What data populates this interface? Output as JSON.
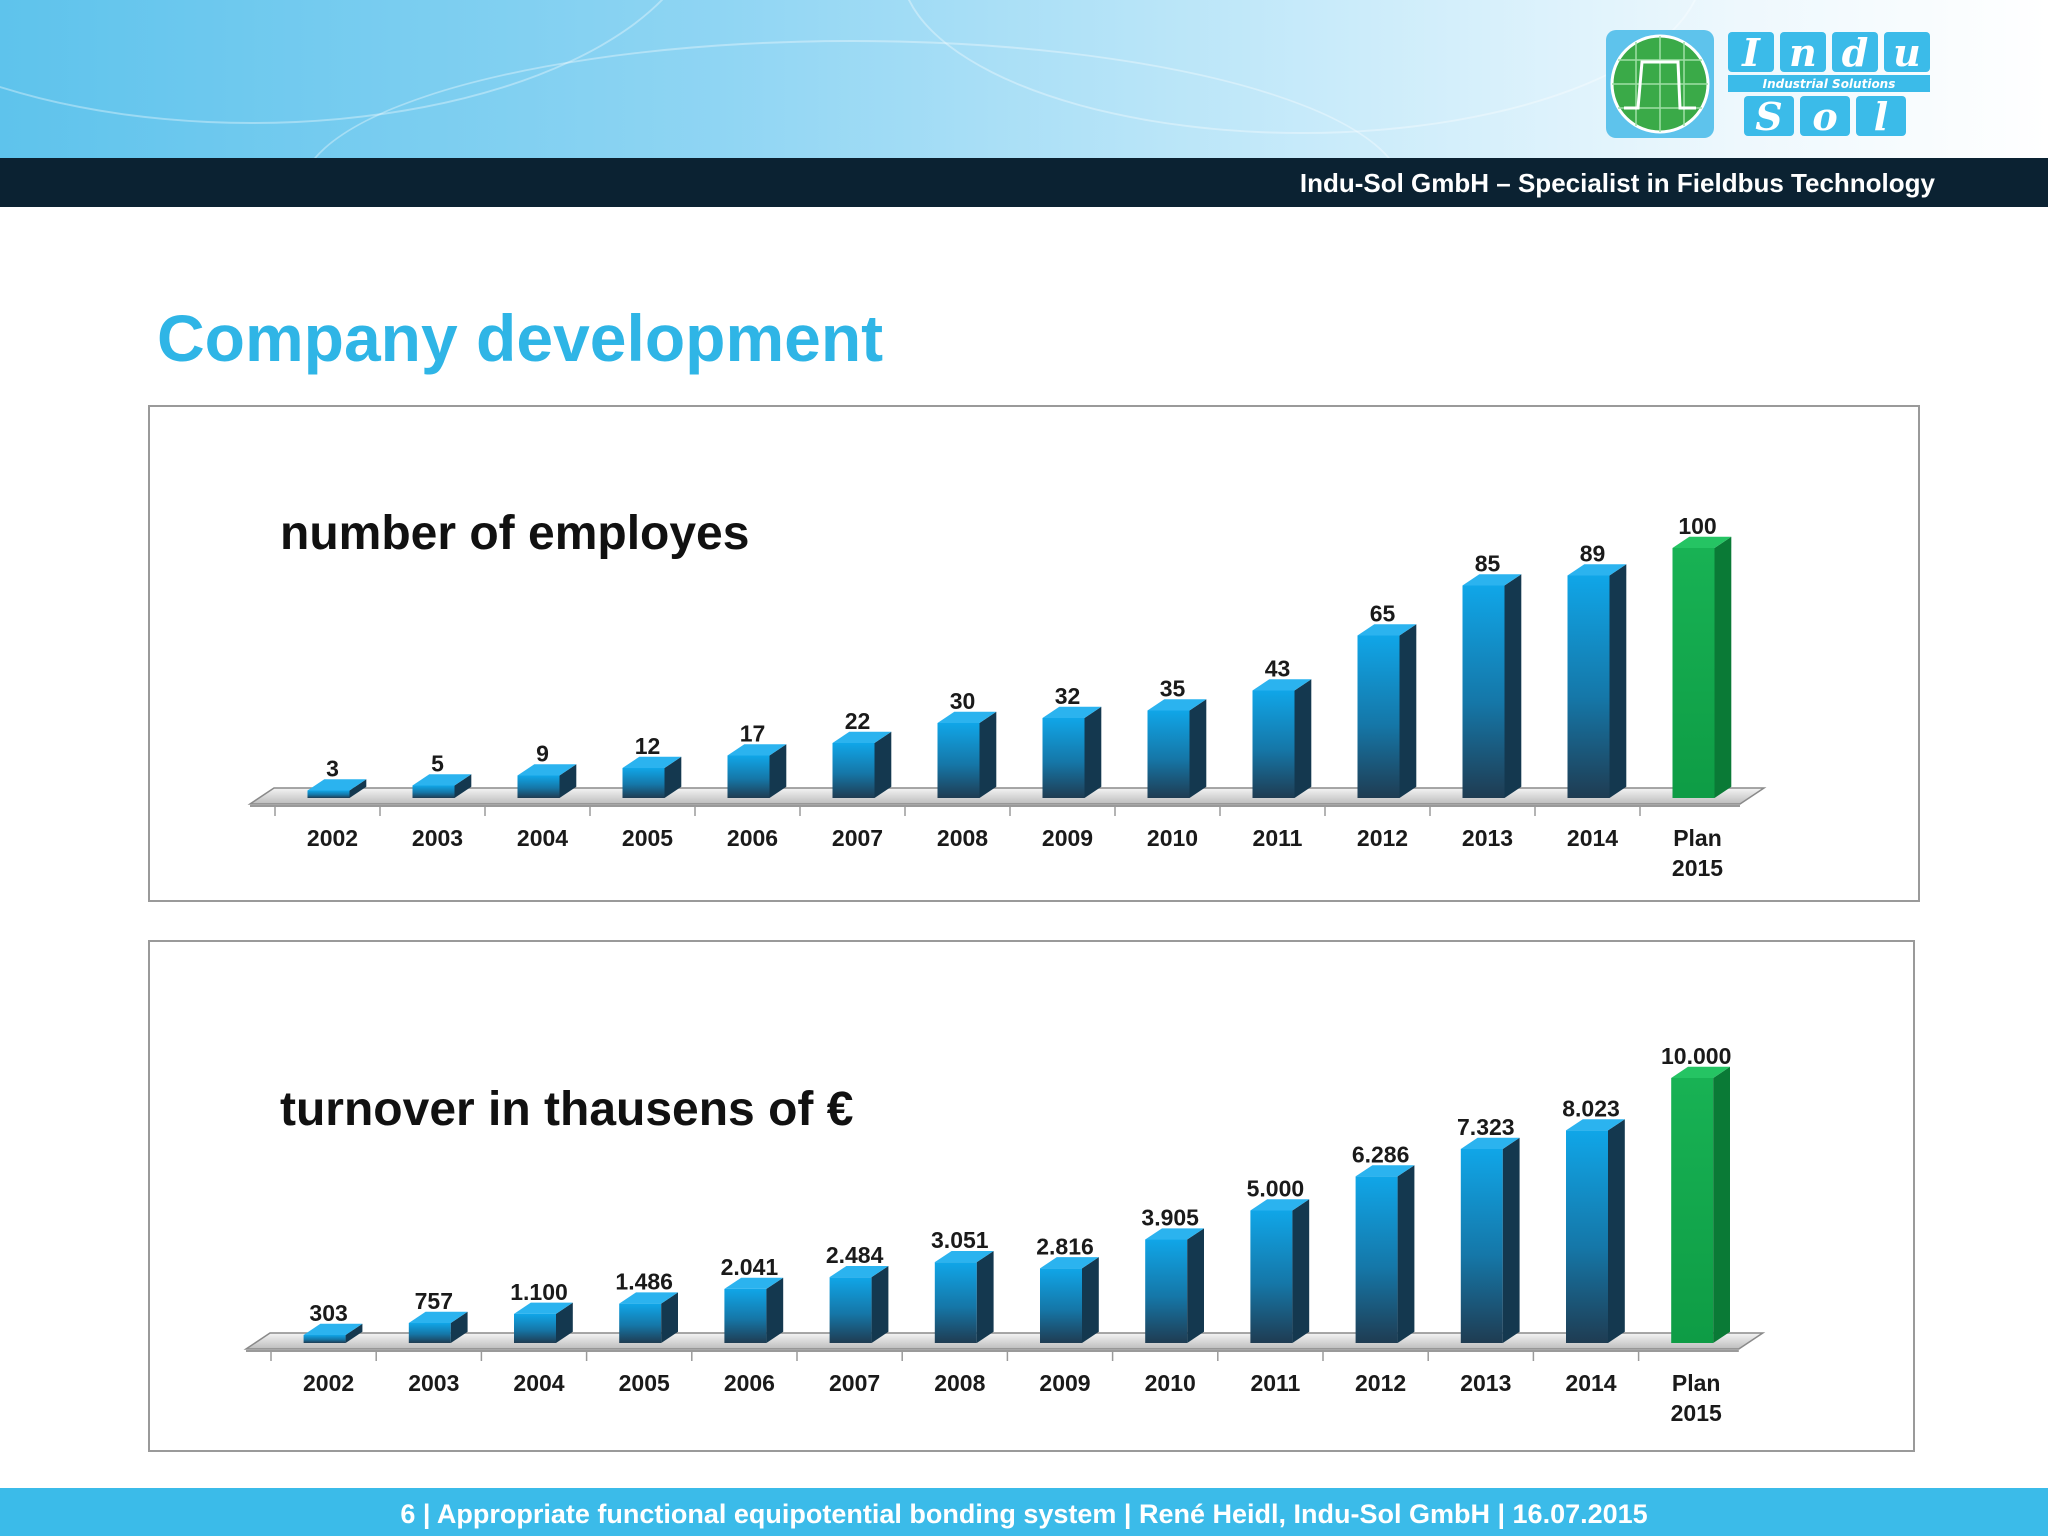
{
  "header": {
    "tagline": "Indu-Sol GmbH – Specialist in Fieldbus Technology",
    "logo": {
      "line1": "Indu",
      "subtitle": "Industrial Solutions",
      "line2": "Sol"
    }
  },
  "page_title": "Company development",
  "colors": {
    "bar_blue": "#0b8fcf",
    "bar_green": "#14a94c",
    "title": "#2fb5e6",
    "header_dark": "#0b2232",
    "footer": "#3bbbe9"
  },
  "chart_data": [
    {
      "type": "bar",
      "title": "number of employes",
      "categories": [
        "2002",
        "2003",
        "2004",
        "2005",
        "2006",
        "2007",
        "2008",
        "2009",
        "2010",
        "2011",
        "2012",
        "2013",
        "2014",
        "Plan 2015"
      ],
      "values": [
        3,
        5,
        9,
        12,
        17,
        22,
        30,
        32,
        35,
        43,
        65,
        85,
        89,
        100
      ],
      "labels": [
        "3",
        "5",
        "9",
        "12",
        "17",
        "22",
        "30",
        "32",
        "35",
        "43",
        "65",
        "85",
        "89",
        "100"
      ],
      "highlight": "Plan 2015",
      "ylim": [
        0,
        100
      ],
      "xlabel": "",
      "ylabel": ""
    },
    {
      "type": "bar",
      "title": "turnover in thausens of €",
      "categories": [
        "2002",
        "2003",
        "2004",
        "2005",
        "2006",
        "2007",
        "2008",
        "2009",
        "2010",
        "2011",
        "2012",
        "2013",
        "2014",
        "Plan 2015"
      ],
      "values": [
        303,
        757,
        1100,
        1486,
        2041,
        2484,
        3051,
        2816,
        3905,
        5000,
        6286,
        7323,
        8023,
        10000
      ],
      "labels": [
        "303",
        "757",
        "1.100",
        "1.486",
        "2.041",
        "2.484",
        "3.051",
        "2.816",
        "3.905",
        "5.000",
        "6.286",
        "7.323",
        "8.023",
        "10.000"
      ],
      "highlight": "Plan 2015",
      "ylim": [
        0,
        10000
      ],
      "xlabel": "",
      "ylabel": ""
    }
  ],
  "footer": {
    "text": "6 | Appropriate functional equipotential bonding system | René Heidl, Indu-Sol GmbH | 16.07.2015"
  }
}
